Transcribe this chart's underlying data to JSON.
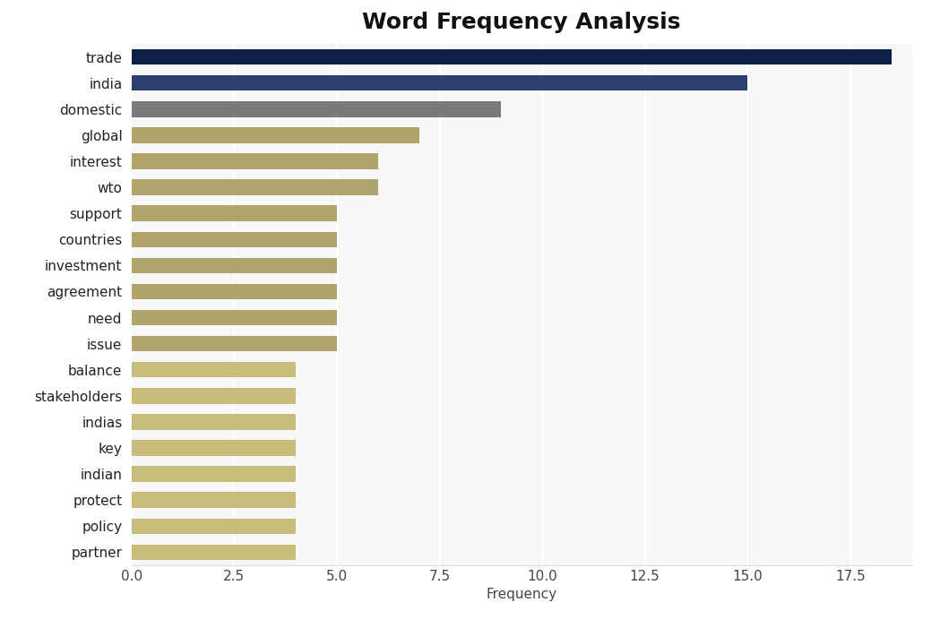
{
  "categories": [
    "trade",
    "india",
    "domestic",
    "global",
    "interest",
    "wto",
    "support",
    "countries",
    "investment",
    "agreement",
    "need",
    "issue",
    "balance",
    "stakeholders",
    "indias",
    "key",
    "indian",
    "protect",
    "policy",
    "partner"
  ],
  "values": [
    18.5,
    15,
    9,
    7,
    6,
    6,
    5,
    5,
    5,
    5,
    5,
    5,
    4,
    4,
    4,
    4,
    4,
    4,
    4,
    4
  ],
  "bar_colors": [
    "#0d1f45",
    "#2d3f6e",
    "#7a7a7a",
    "#b0a46a",
    "#b0a46a",
    "#b0a46a",
    "#b0a46a",
    "#b0a46a",
    "#b0a46a",
    "#b0a46a",
    "#b0a46a",
    "#b0a46a",
    "#c8bc7a",
    "#c8bc7a",
    "#c8bc7a",
    "#c8bc7a",
    "#c8bc7a",
    "#c8bc7a",
    "#c8bc7a",
    "#c8bc7a"
  ],
  "title": "Word Frequency Analysis",
  "xlabel": "Frequency",
  "xlim": [
    0,
    19
  ],
  "background_color": "#ffffff",
  "plot_background": "#f7f7f7",
  "title_fontsize": 18,
  "label_fontsize": 11,
  "tick_fontsize": 11,
  "xticks": [
    0.0,
    2.5,
    5.0,
    7.5,
    10.0,
    12.5,
    15.0,
    17.5
  ]
}
